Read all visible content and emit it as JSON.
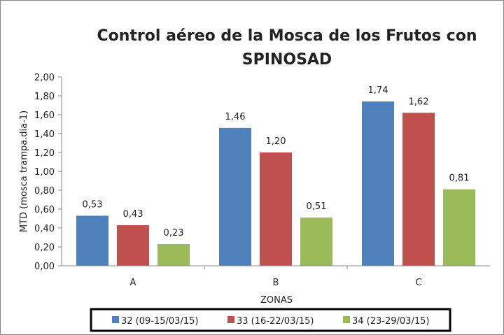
{
  "chart_data": {
    "type": "bar",
    "title_lines": [
      "Control aéreo de la Mosca de los Frutos con",
      "SPINOSAD"
    ],
    "xlabel": "ZONAS",
    "ylabel": "MTD (mosca trampa.dia-1)",
    "categories": [
      "A",
      "B",
      "C"
    ],
    "ylim": [
      0,
      2
    ],
    "yticks": [
      "0,00",
      "0,20",
      "0,40",
      "0,60",
      "0,80",
      "1,00",
      "1,20",
      "1,40",
      "1,60",
      "1,80",
      "2,00"
    ],
    "grid": false,
    "legend_position": "bottom",
    "series": [
      {
        "name": "32 (09-15/03/15)",
        "color": "#4f81bd",
        "values": [
          0.53,
          1.46,
          1.74
        ],
        "labels": [
          "0,53",
          "1,46",
          "1,74"
        ]
      },
      {
        "name": "33 (16-22/03/15)",
        "color": "#c0504d",
        "values": [
          0.43,
          1.2,
          1.62
        ],
        "labels": [
          "0,43",
          "1,20",
          "1,62"
        ]
      },
      {
        "name": "34 (23-29/03/15)",
        "color": "#9bbb59",
        "values": [
          0.23,
          0.51,
          0.81
        ],
        "labels": [
          "0,23",
          "0,51",
          "0,81"
        ]
      }
    ]
  }
}
